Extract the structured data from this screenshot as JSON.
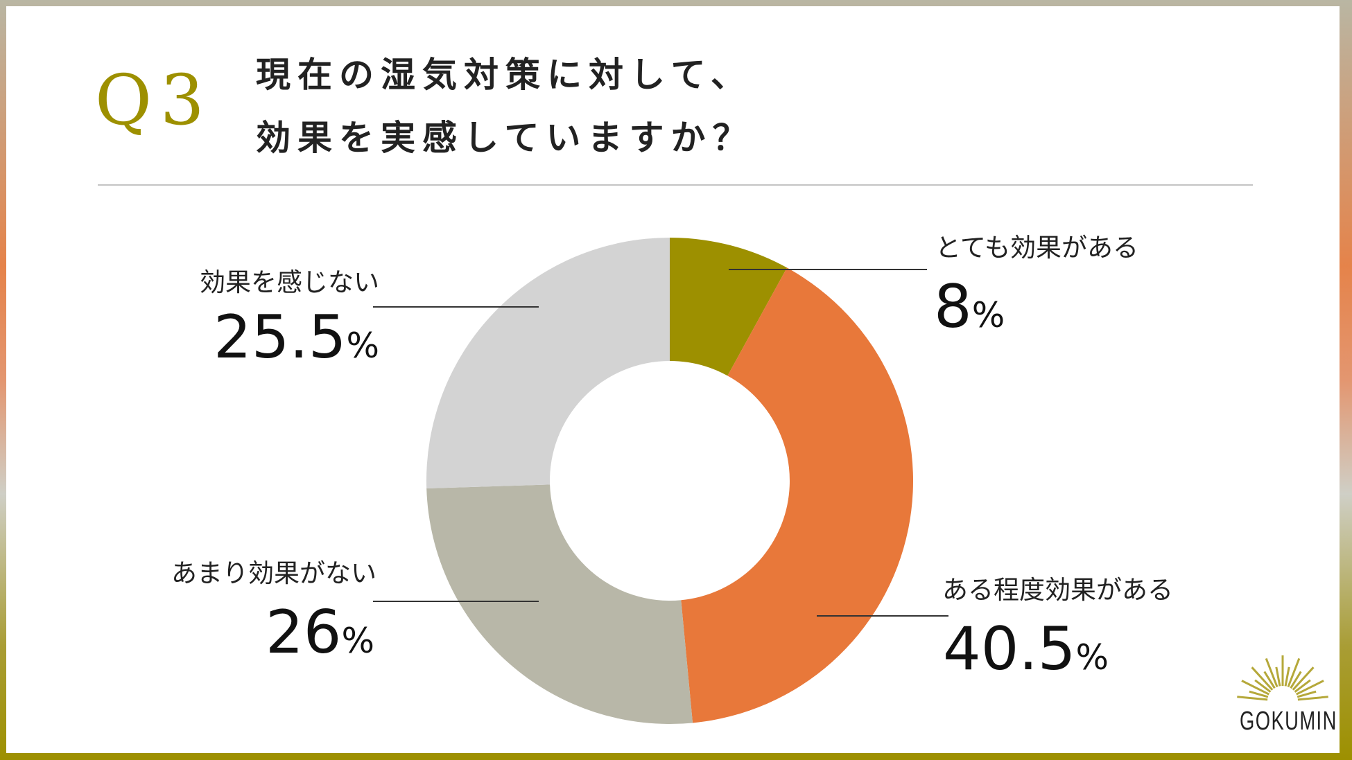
{
  "question_number": "Q3",
  "title_lines": [
    "現在の湿気対策に対して、",
    "効果を実感していますか？"
  ],
  "brand": "GOKUMIN",
  "chart_data": {
    "type": "pie",
    "donut": true,
    "start": "top, clockwise",
    "categories": [
      "とても効果がある",
      "ある程度効果がある",
      "あまり効果がない",
      "効果を感じない"
    ],
    "values": [
      8,
      40.5,
      26,
      25.5
    ],
    "value_labels": [
      "8",
      "40.5",
      "26",
      "25.5"
    ],
    "unit": "%",
    "colors": [
      "#9d9000",
      "#e8783a",
      "#b8b7a8",
      "#d3d3d3"
    ]
  }
}
